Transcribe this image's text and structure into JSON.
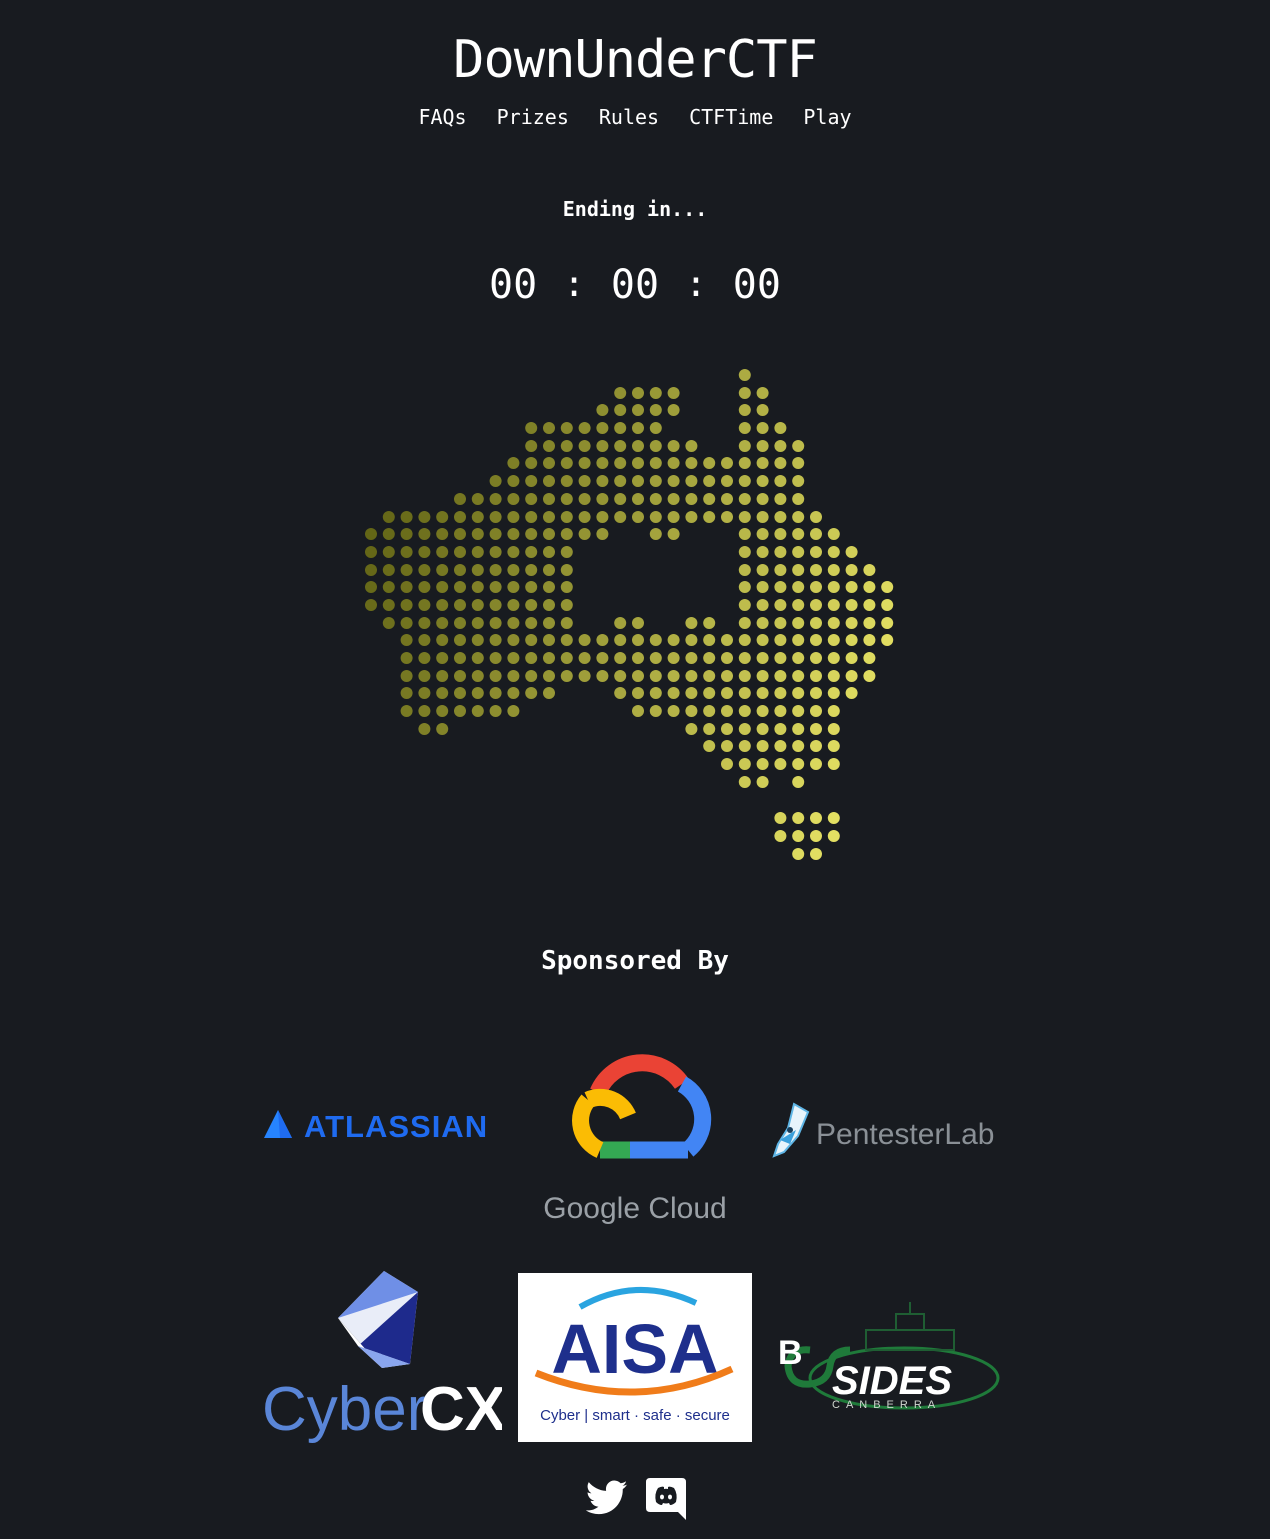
{
  "site": {
    "title": "DownUnderCTF"
  },
  "nav": [
    {
      "label": "FAQs"
    },
    {
      "label": "Prizes"
    },
    {
      "label": "Rules"
    },
    {
      "label": "CTFTime"
    },
    {
      "label": "Play"
    }
  ],
  "countdown": {
    "heading": "Ending in...",
    "hours": "00",
    "minutes": "00",
    "seconds": "00",
    "separator": ":"
  },
  "map": {
    "dark_color": "#575a0f",
    "light_color": "#ece868"
  },
  "sponsors": {
    "heading": "Sponsored By",
    "items": [
      {
        "name": "Atlassian",
        "text": "ATLASSIAN",
        "color": "#1f6bf0",
        "icon": "atlassian-logo"
      },
      {
        "name": "Google Cloud",
        "text": "Google Cloud",
        "color": "#9aa0a6",
        "icon": "google-cloud-logo"
      },
      {
        "name": "PentesterLab",
        "text": "PentesterLab",
        "color": "#8a9096",
        "icon": "pentesterlab-logo"
      },
      {
        "name": "CyberCX",
        "text_a": "Cyber",
        "text_b": "CX",
        "color": "#5a86d8",
        "icon": "cybercx-logo"
      },
      {
        "name": "AISA",
        "text": "AISA",
        "tagline": "Cyber | smart · safe · secure",
        "color": "#1e2f8c",
        "icon": "aisa-logo"
      },
      {
        "name": "BSides Canberra",
        "text_b": "B",
        "text_sides": "SIDES",
        "text_city": "CANBERRA",
        "color": "#1f7a3a",
        "icon": "bsides-logo"
      }
    ]
  },
  "social": [
    {
      "name": "Twitter",
      "icon": "twitter-icon"
    },
    {
      "name": "Discord",
      "icon": "discord-icon"
    }
  ]
}
